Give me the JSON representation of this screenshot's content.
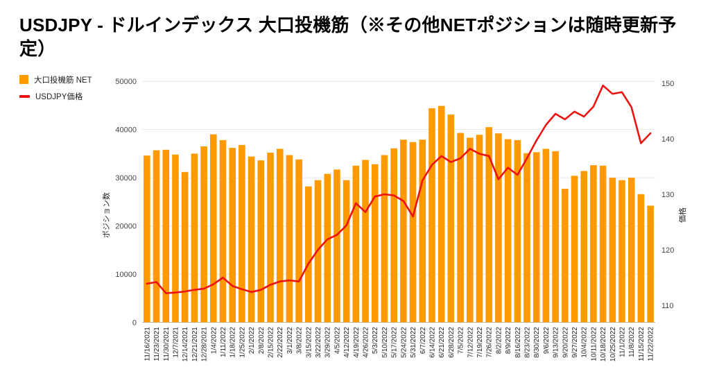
{
  "page": {
    "title": "USDJPY - ドルインデックス 大口投機筋（※その他NETポジションは随時更新予定）"
  },
  "legend": {
    "items": [
      {
        "label": "大口投機筋 NET",
        "color": "#ff9900",
        "swatch": "square"
      },
      {
        "label": "USDJPY価格",
        "color": "#ee1111",
        "swatch": "line"
      }
    ]
  },
  "colors": {
    "bar": "#ff9900",
    "line": "#ee1111",
    "grid": "#e6e6e6",
    "baseline": "#b7b7b7",
    "tick_text": "#444444",
    "x_text": "#222222",
    "axis_title_text": "#222222"
  },
  "chart_data": {
    "type": "bar",
    "subtype": "combo-bar-line",
    "title": "USDJPY - ドルインデックス 大口投機筋（※その他NETポジションは随時更新予定）",
    "grid": true,
    "legend_position": "top-left",
    "categories": [
      "11/16/2021",
      "11/23/2021",
      "11/30/2021",
      "12/7/2021",
      "12/14/2021",
      "12/21/2021",
      "12/28/2021",
      "1/4/2022",
      "1/11/2022",
      "1/18/2022",
      "1/25/2022",
      "2/1/2022",
      "2/8/2022",
      "2/15/2022",
      "2/22/2022",
      "3/1/2022",
      "3/8/2022",
      "3/15/2022",
      "3/22/2022",
      "3/29/2022",
      "4/5/2022",
      "4/12/2022",
      "4/19/2022",
      "4/26/2022",
      "5/3/2022",
      "5/10/2022",
      "5/17/2022",
      "5/24/2022",
      "5/31/2022",
      "6/7/2022",
      "6/14/2022",
      "6/21/2022",
      "6/28/2022",
      "7/5/2022",
      "7/12/2022",
      "7/19/2022",
      "7/26/2022",
      "8/2/2022",
      "8/9/2022",
      "8/16/2022",
      "8/23/2022",
      "8/30/2022",
      "9/6/2022",
      "9/13/2022",
      "9/20/2022",
      "9/27/2022",
      "10/4/2022",
      "10/11/2022",
      "10/18/2022",
      "10/25/2022",
      "11/1/2022",
      "11/8/2022",
      "11/15/2022",
      "11/22/2022"
    ],
    "series": [
      {
        "name": "大口投機筋 NET",
        "type": "bar",
        "axis": "left",
        "color": "#ff9900",
        "values": [
          34600,
          35700,
          35800,
          34800,
          31200,
          35000,
          36500,
          39000,
          37800,
          36200,
          36800,
          34400,
          33600,
          35200,
          36000,
          34700,
          33800,
          28200,
          29500,
          30800,
          31700,
          29500,
          32500,
          33700,
          32800,
          34700,
          36100,
          37900,
          37400,
          37900,
          44400,
          44900,
          43100,
          39300,
          38300,
          38900,
          40500,
          39200,
          38000,
          37800,
          35100,
          35300,
          36000,
          35500,
          27700,
          30400,
          31400,
          32600,
          32500,
          30000,
          29500,
          30000,
          26600,
          24200
        ]
      },
      {
        "name": "USDJPY価格",
        "type": "line",
        "axis": "right",
        "color": "#ee1111",
        "values": [
          113.9,
          114.2,
          112.2,
          112.3,
          112.5,
          112.8,
          113.0,
          113.8,
          115.0,
          113.5,
          112.9,
          112.4,
          112.8,
          113.7,
          114.3,
          114.5,
          114.3,
          117.5,
          120.0,
          121.9,
          122.7,
          124.4,
          128.4,
          126.8,
          129.6,
          130.0,
          129.8,
          128.8,
          126.0,
          132.5,
          135.3,
          136.9,
          135.8,
          136.5,
          138.2,
          137.3,
          136.9,
          132.7,
          134.8,
          133.5,
          136.5,
          139.7,
          142.5,
          144.5,
          143.5,
          144.9,
          144.0,
          145.8,
          149.6,
          148.1,
          148.4,
          145.7,
          139.2,
          141.0
        ]
      }
    ],
    "left_axis": {
      "title": "ポジション数",
      "ticks": [
        0,
        10000,
        20000,
        30000,
        40000,
        50000
      ],
      "range": [
        0,
        50000
      ]
    },
    "right_axis": {
      "title": "価格",
      "ticks": [
        110,
        120,
        130,
        140,
        150
      ],
      "range": [
        106.9,
        150.4
      ]
    }
  }
}
